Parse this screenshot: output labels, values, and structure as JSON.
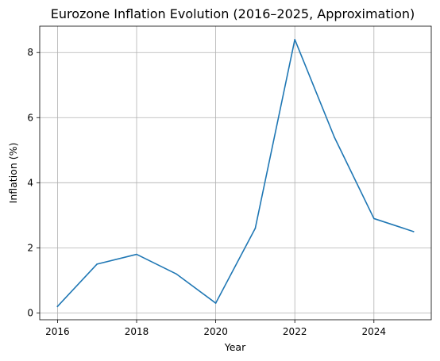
{
  "chart_data": {
    "type": "line",
    "title": "Eurozone Inflation Evolution (2016–2025, Approximation)",
    "xlabel": "Year",
    "ylabel": "Inflation (%)",
    "x": [
      2016,
      2017,
      2018,
      2019,
      2020,
      2021,
      2022,
      2023,
      2024,
      2025
    ],
    "series": [
      {
        "values": [
          0.2,
          1.5,
          1.8,
          1.2,
          0.3,
          2.6,
          8.4,
          5.4,
          2.9,
          2.5
        ]
      }
    ],
    "xlim": [
      2015.55,
      2025.45
    ],
    "ylim": [
      -0.21,
      8.81
    ],
    "xticks": [
      2016,
      2018,
      2020,
      2022,
      2024
    ],
    "yticks": [
      0,
      2,
      4,
      6,
      8
    ],
    "grid": true,
    "line_color": "#1f77b4"
  }
}
